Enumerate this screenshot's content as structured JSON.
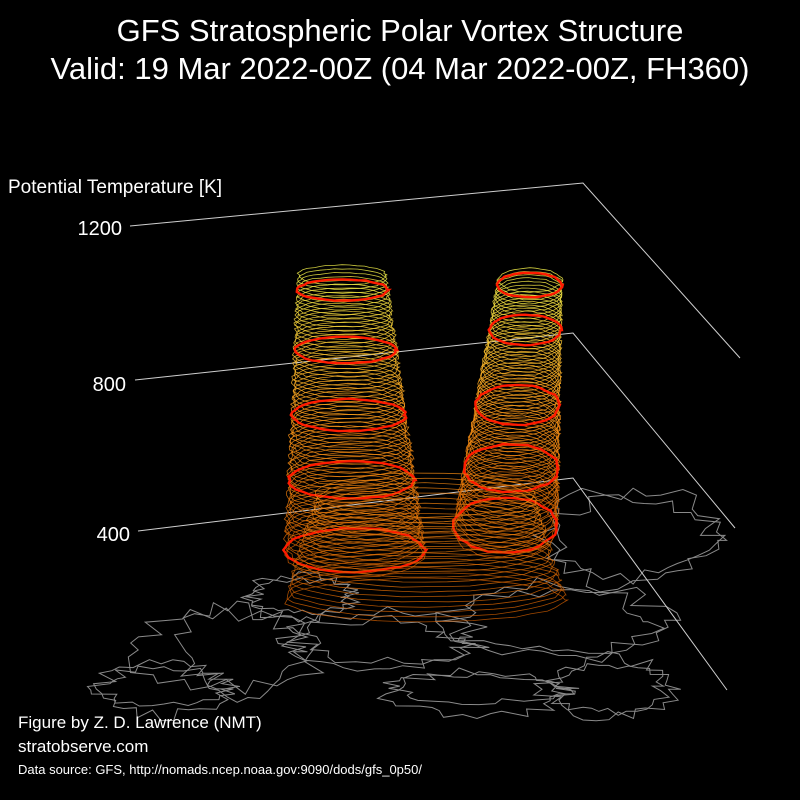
{
  "title": "GFS Stratospheric Polar Vortex Structure",
  "subtitle": "Valid: 19 Mar 2022-00Z  (04 Mar 2022-00Z, FH360)",
  "axis": {
    "label": "Potential Temperature [K]",
    "ticks": [
      {
        "value": 1200,
        "label": "1200"
      },
      {
        "value": 800,
        "label": "800"
      },
      {
        "value": 400,
        "label": "400"
      }
    ]
  },
  "credits": {
    "author": "Figure by Z. D. Lawrence (NMT)",
    "site": "stratobserve.com",
    "source": "Data source: GFS, http://nomads.ncep.noaa.gov:9090/dods/gfs_0p50/"
  },
  "colors": {
    "background": "#000000",
    "contour_low": "#c85a00",
    "contour_mid": "#ff9a1a",
    "contour_high": "#f2f04a",
    "highlight": "#ff1a00",
    "gridline": "#cfcfcf",
    "coastline": "#8a8a8a"
  }
}
